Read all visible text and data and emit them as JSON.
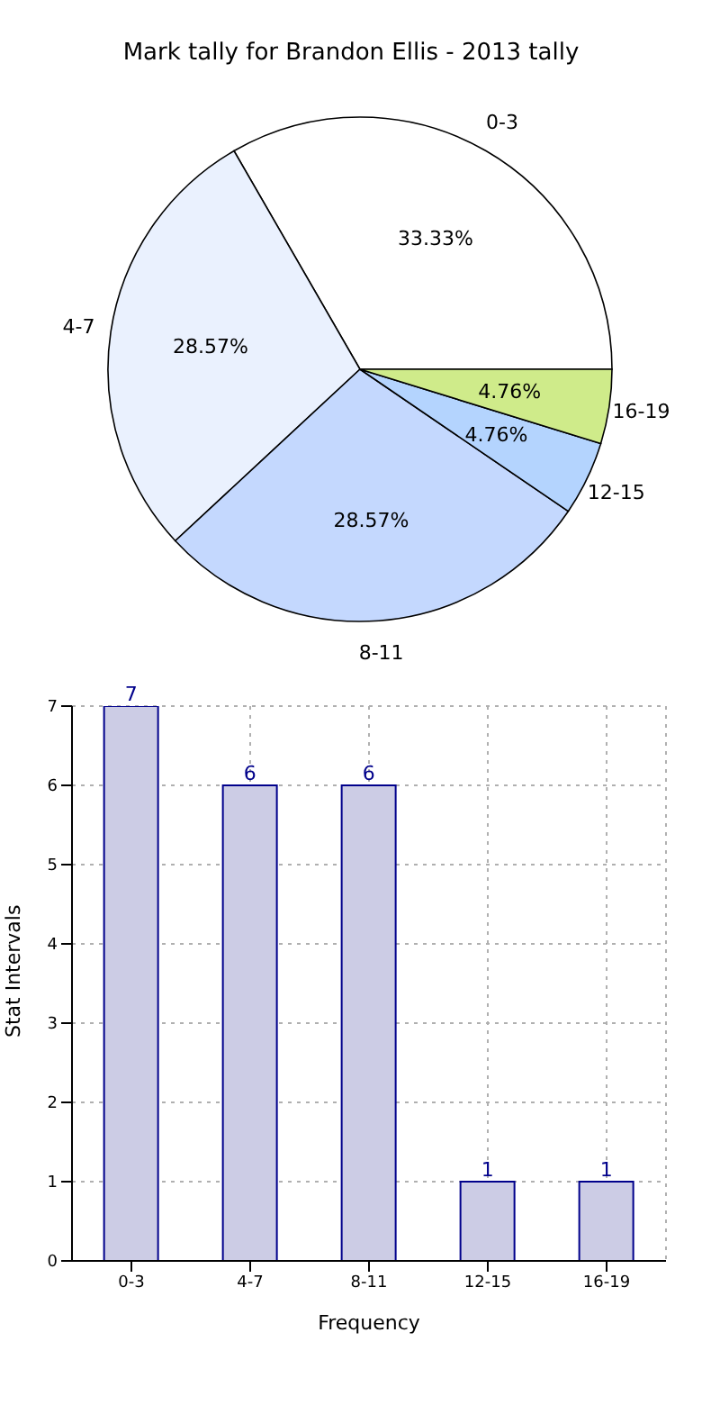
{
  "chart_data": [
    {
      "type": "pie",
      "title": "Mark tally for Brandon Ellis - 2013 tally",
      "categories": [
        "0-3",
        "4-7",
        "8-11",
        "12-15",
        "16-19"
      ],
      "values": [
        33.33,
        28.57,
        28.57,
        4.76,
        4.76
      ],
      "value_labels": [
        "33.33%",
        "28.57%",
        "28.57%",
        "4.76%",
        "4.76%"
      ],
      "colors": [
        "#ffffff",
        "#eaf1fe",
        "#c4d8fe",
        "#b4d4fe",
        "#cfeb8a"
      ]
    },
    {
      "type": "bar",
      "categories": [
        "0-3",
        "4-7",
        "8-11",
        "12-15",
        "16-19"
      ],
      "values": [
        7,
        6,
        6,
        1,
        1
      ],
      "color": "#ccccE5",
      "xlabel": "Frequency",
      "ylabel": "Stat Intervals",
      "ylim": [
        0,
        7
      ],
      "yticks": [
        0,
        1,
        2,
        3,
        4,
        5,
        6,
        7
      ],
      "grid": true,
      "data_labels": true
    }
  ]
}
